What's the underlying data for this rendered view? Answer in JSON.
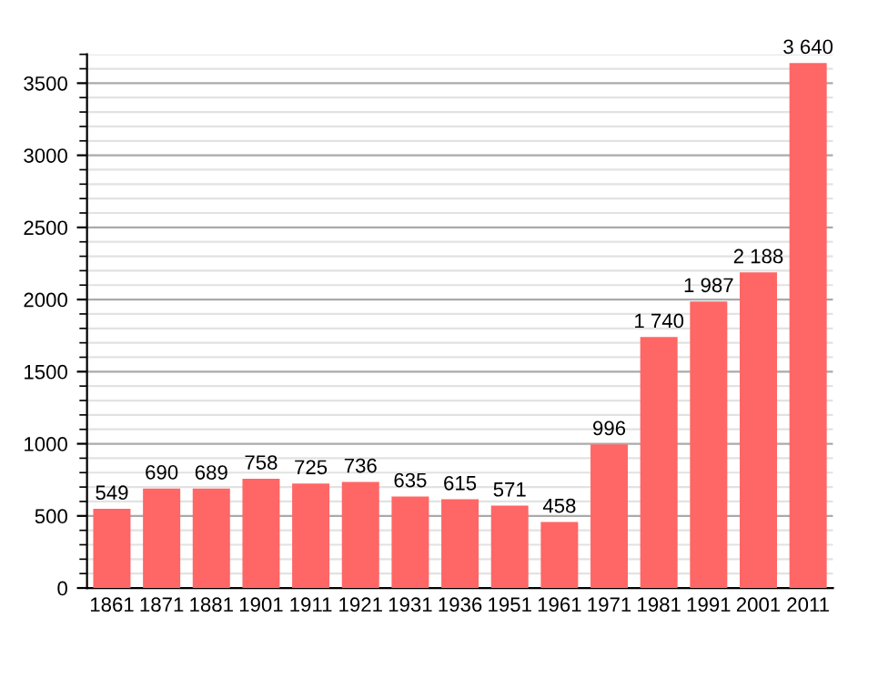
{
  "chart_data": {
    "type": "bar",
    "categories": [
      "1861",
      "1871",
      "1881",
      "1901",
      "1911",
      "1921",
      "1931",
      "1936",
      "1951",
      "1961",
      "1971",
      "1981",
      "1991",
      "2001",
      "2011"
    ],
    "values": [
      549,
      690,
      689,
      758,
      725,
      736,
      635,
      615,
      571,
      458,
      996,
      1740,
      1987,
      2188,
      3640
    ],
    "value_labels": [
      "549",
      "690",
      "689",
      "758",
      "725",
      "736",
      "635",
      "615",
      "571",
      "458",
      "996",
      "1 740",
      "1 987",
      "2 188",
      "3 640"
    ],
    "color": "#ff6666",
    "ylim": [
      0,
      3700
    ],
    "yticks": [
      0,
      500,
      1000,
      1500,
      2000,
      2500,
      3000,
      3500
    ],
    "grid": "y",
    "legend": false
  }
}
